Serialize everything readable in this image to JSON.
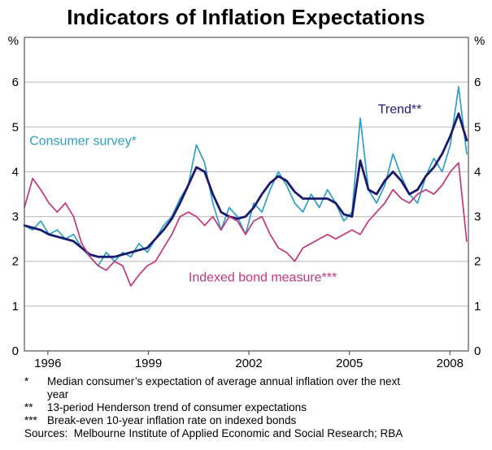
{
  "chart_data": {
    "type": "line",
    "title": "Indicators of Inflation Expectations",
    "y_axis_unit": "%",
    "xlim": [
      1995.3,
      2008.55
    ],
    "ylim": [
      0,
      7
    ],
    "yticks": [
      0,
      1,
      2,
      3,
      4,
      5,
      6
    ],
    "xticks": [
      1996,
      1999,
      2002,
      2005,
      2008
    ],
    "grid": "horizontal",
    "legend": "in-plot-labels",
    "x_start": 1995.3,
    "x_end": 2008.5,
    "colors": {
      "grid": "#b8b8b8",
      "frame": "#555555"
    },
    "series": [
      {
        "name": "Consumer survey*",
        "color": "#2f9ec9",
        "width": 1.7,
        "label_pos": {
          "x": 1995.45,
          "y": 4.6
        },
        "values": [
          2.8,
          2.7,
          2.9,
          2.6,
          2.7,
          2.5,
          2.6,
          2.3,
          2.1,
          1.9,
          2.2,
          2.0,
          2.2,
          2.1,
          2.4,
          2.2,
          2.5,
          2.8,
          3.0,
          3.4,
          3.7,
          4.6,
          4.2,
          3.3,
          2.7,
          3.2,
          3.0,
          2.6,
          3.3,
          3.1,
          3.6,
          4.0,
          3.7,
          3.3,
          3.1,
          3.5,
          3.2,
          3.6,
          3.3,
          2.9,
          3.1,
          5.2,
          3.6,
          3.3,
          3.7,
          4.4,
          3.9,
          3.5,
          3.3,
          3.9,
          4.3,
          4.0,
          4.6,
          5.9,
          4.4
        ]
      },
      {
        "name": "Trend**",
        "color": "#1a1a6e",
        "width": 2.8,
        "label_pos": {
          "x": 2005.85,
          "y": 5.3
        },
        "values": [
          2.8,
          2.75,
          2.7,
          2.6,
          2.55,
          2.5,
          2.45,
          2.3,
          2.15,
          2.1,
          2.1,
          2.1,
          2.15,
          2.2,
          2.25,
          2.3,
          2.5,
          2.7,
          2.95,
          3.3,
          3.7,
          4.1,
          4.0,
          3.5,
          3.1,
          3.0,
          2.95,
          3.0,
          3.2,
          3.5,
          3.75,
          3.9,
          3.8,
          3.55,
          3.4,
          3.4,
          3.4,
          3.4,
          3.3,
          3.05,
          3.0,
          4.25,
          3.6,
          3.5,
          3.8,
          4.0,
          3.8,
          3.5,
          3.6,
          3.9,
          4.1,
          4.4,
          4.8,
          5.3,
          4.7
        ]
      },
      {
        "name": "Indexed bond measure***",
        "color": "#c2367c",
        "width": 1.7,
        "label_pos": {
          "x": 2000.2,
          "y": 1.55
        },
        "values": [
          3.2,
          3.85,
          3.6,
          3.3,
          3.1,
          3.3,
          3.0,
          2.4,
          2.1,
          1.9,
          1.8,
          2.0,
          1.9,
          1.45,
          1.7,
          1.9,
          2.0,
          2.3,
          2.6,
          3.0,
          3.1,
          3.0,
          2.8,
          3.0,
          2.7,
          3.0,
          2.9,
          2.6,
          2.9,
          3.0,
          2.6,
          2.3,
          2.2,
          2.0,
          2.3,
          2.4,
          2.5,
          2.6,
          2.5,
          2.6,
          2.7,
          2.6,
          2.9,
          3.1,
          3.3,
          3.6,
          3.4,
          3.3,
          3.5,
          3.6,
          3.5,
          3.7,
          4.0,
          4.2,
          2.45
        ]
      }
    ]
  },
  "footnotes": [
    {
      "marker": "*",
      "text": "Median consumer’s expectation of average annual inflation over the next\nyear"
    },
    {
      "marker": "**",
      "text": "13-period Henderson trend of consumer expectations"
    },
    {
      "marker": "***",
      "text": "Break-even 10-year inflation rate on indexed bonds"
    }
  ],
  "sources": "Sources:  Melbourne Institute of Applied Economic and Social Research; RBA"
}
